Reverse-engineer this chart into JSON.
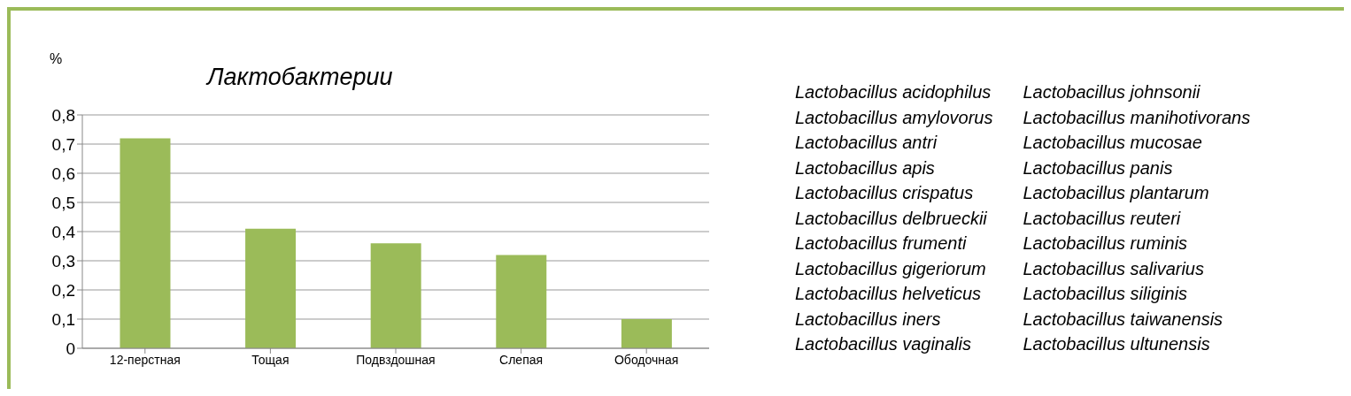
{
  "chart_data": {
    "type": "bar",
    "title": "Лактобактерии",
    "ylabel": "%",
    "categories": [
      "12-перстная",
      "Тощая",
      "Подвздошная",
      "Слепая",
      "Ободочная"
    ],
    "values": [
      0.72,
      0.41,
      0.36,
      0.32,
      0.1
    ],
    "color": "#9bbb59",
    "ylim": [
      0,
      0.8
    ],
    "yticks": [
      0,
      {
        "value": 0.1,
        "label": "0,1"
      },
      {
        "value": 0.2,
        "label": "0,2"
      },
      {
        "value": 0.3,
        "label": "0,3"
      },
      {
        "value": 0.4,
        "label": "0,4"
      },
      {
        "value": 0.5,
        "label": "0,5"
      },
      {
        "value": 0.6,
        "label": "0,6"
      },
      {
        "value": 0.7,
        "label": "0,7"
      },
      {
        "value": 0.8,
        "label": "0,8"
      }
    ],
    "grid": "y",
    "legend": false,
    "annotations": [
      "Lactobacillus acidophilus",
      "Lactobacillus amylovorus",
      "Lactobacillus antri",
      "Lactobacillus apis",
      "Lactobacillus crispatus",
      "Lactobacillus delbrueckii",
      "Lactobacillus frumenti",
      "Lactobacillus gigeriorum",
      "Lactobacillus helveticus",
      "Lactobacillus iners",
      "Lactobacillus vaginalis",
      "Lactobacillus johnsonii",
      "Lactobacillus manihotivorans",
      "Lactobacillus mucosae",
      "Lactobacillus panis",
      "Lactobacillus plantarum",
      "Lactobacillus reuteri",
      "Lactobacillus ruminis",
      "Lactobacillus salivarius",
      "Lactobacillus siliginis",
      "Lactobacillus taiwanensis",
      "Lactobacillus ultunensis"
    ]
  }
}
